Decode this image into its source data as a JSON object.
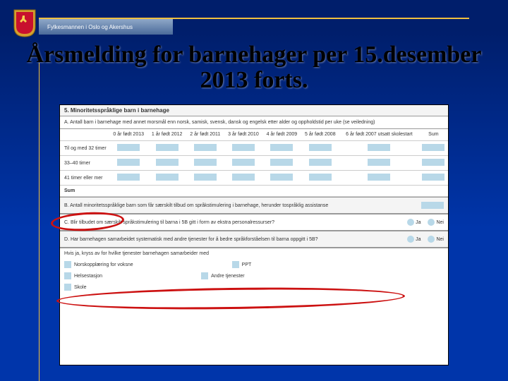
{
  "header": {
    "org": "Fylkesmannen i Oslo og Akershus"
  },
  "title": "Årsmelding for barnehager per 15.desember 2013 forts.",
  "form": {
    "section5_title": "5. Minoritetsspråklige barn i barnehage",
    "subA": "A. Antall barn i barnehage med annet morsmål enn norsk, samisk, svensk, dansk og engelsk etter alder og oppholdstid per uke (se veiledning)",
    "cols": [
      "0 år født 2013",
      "1 år født 2012",
      "2 år født 2011",
      "3 år født 2010",
      "4 år født 2009",
      "5 år født 2008",
      "6 år født 2007 utsatt skolestart",
      "Sum"
    ],
    "rows": [
      "Til og med 32 timer",
      "33–40 timer",
      "41 timer eller mer",
      "Sum"
    ],
    "subB": "B. Antall minoritetsspråklige barn som får særskilt tilbud om språkstimulering i barnehage, herunder tospråklig assistanse",
    "subC": "C. Blir tilbudet om særskilt språkstimulering til barna i 5B gitt i form av ekstra personalressurser?",
    "subD": "D. Har barnehagen samarbeidet systematisk med andre tjenester for å bedre språkforståelsen til barna oppgitt i 5B?",
    "ja": "Ja",
    "nei": "Nei",
    "checkboxes_title": "Hvis ja, kryss av for hvilke tjenester barnehagen samarbeider med",
    "cb": {
      "a": "Norskopplæring for voksne",
      "b": "PPT",
      "c": "Helsestasjon",
      "d": "Andre tjenester",
      "e": "Skole"
    }
  },
  "colors": {
    "accent": "#f0c040",
    "field": "#b8d8e8",
    "highlight": "#c11"
  }
}
